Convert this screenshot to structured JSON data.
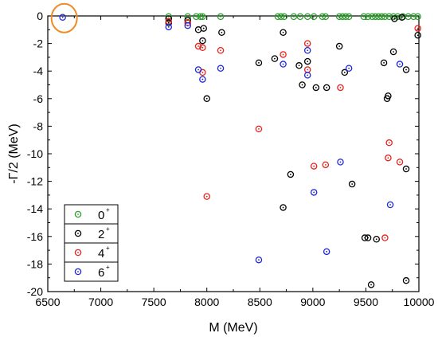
{
  "chart_data": {
    "type": "scatter",
    "xlabel": "M (MeV)",
    "ylabel": "-Γ/2 (MeV)",
    "xlim": [
      6500,
      10000
    ],
    "ylim": [
      -20,
      0
    ],
    "x_ticks": [
      "6500",
      "7000",
      "7500",
      "8000",
      "8500",
      "9000",
      "9500",
      "10000"
    ],
    "y_ticks": [
      "0",
      "-2",
      "-4",
      "-6",
      "-8",
      "-10",
      "-12",
      "-14",
      "-16",
      "-18",
      "-20"
    ],
    "grid": false,
    "legend_position": "bottom-left",
    "highlight": {
      "x": 6640,
      "y": -0.1,
      "color": "#f08a24"
    },
    "series": [
      {
        "name": "0",
        "name_sup": "+",
        "color": "#2ca02c",
        "points": [
          [
            7640,
            -0.05
          ],
          [
            7820,
            -0.05
          ],
          [
            7900,
            -0.05
          ],
          [
            7940,
            -0.05
          ],
          [
            7960,
            -0.05
          ],
          [
            8130,
            -0.05
          ],
          [
            8670,
            -0.05
          ],
          [
            8700,
            -0.05
          ],
          [
            8730,
            -0.05
          ],
          [
            8820,
            -0.05
          ],
          [
            8880,
            -0.05
          ],
          [
            8950,
            -0.05
          ],
          [
            9010,
            -0.05
          ],
          [
            9090,
            -0.05
          ],
          [
            9120,
            -0.05
          ],
          [
            9250,
            -0.05
          ],
          [
            9280,
            -0.05
          ],
          [
            9310,
            -0.05
          ],
          [
            9340,
            -0.05
          ],
          [
            9480,
            -0.05
          ],
          [
            9520,
            -0.05
          ],
          [
            9560,
            -0.05
          ],
          [
            9590,
            -0.05
          ],
          [
            9620,
            -0.05
          ],
          [
            9650,
            -0.05
          ],
          [
            9680,
            -0.05
          ],
          [
            9720,
            -0.05
          ],
          [
            9760,
            -0.05
          ],
          [
            9800,
            -0.05
          ],
          [
            9850,
            -0.05
          ],
          [
            9900,
            -0.05
          ],
          [
            9950,
            -0.05
          ],
          [
            9990,
            -0.05
          ]
        ]
      },
      {
        "name": "2",
        "name_sup": "+",
        "color": "#000000",
        "points": [
          [
            7640,
            -0.2
          ],
          [
            7640,
            -0.5
          ],
          [
            7820,
            -0.3
          ],
          [
            7920,
            -1.0
          ],
          [
            7970,
            -0.9
          ],
          [
            7960,
            -1.8
          ],
          [
            8000,
            -6.0
          ],
          [
            8140,
            -1.2
          ],
          [
            8490,
            -3.4
          ],
          [
            8640,
            -3.1
          ],
          [
            8720,
            -1.2
          ],
          [
            8720,
            -13.9
          ],
          [
            8790,
            -11.5
          ],
          [
            8870,
            -3.6
          ],
          [
            8900,
            -5.0
          ],
          [
            8950,
            -3.3
          ],
          [
            9030,
            -5.2
          ],
          [
            9130,
            -5.2
          ],
          [
            9250,
            -2.2
          ],
          [
            9300,
            -4.1
          ],
          [
            9370,
            -12.2
          ],
          [
            9490,
            -16.1
          ],
          [
            9520,
            -16.1
          ],
          [
            9550,
            -19.5
          ],
          [
            9600,
            -16.2
          ],
          [
            9670,
            -3.4
          ],
          [
            9700,
            -6.0
          ],
          [
            9710,
            -5.8
          ],
          [
            9760,
            -2.6
          ],
          [
            9770,
            -0.2
          ],
          [
            9840,
            -0.1
          ],
          [
            9880,
            -3.9
          ],
          [
            9880,
            -11.1
          ],
          [
            9880,
            -19.2
          ],
          [
            9990,
            -1.4
          ]
        ]
      },
      {
        "name": "4",
        "name_sup": "+",
        "color": "#e8221c",
        "points": [
          [
            7640,
            -0.4
          ],
          [
            7820,
            -0.5
          ],
          [
            7920,
            -2.2
          ],
          [
            7960,
            -2.3
          ],
          [
            7960,
            -4.1
          ],
          [
            8000,
            -13.1
          ],
          [
            8130,
            -2.5
          ],
          [
            8490,
            -8.2
          ],
          [
            8720,
            -2.8
          ],
          [
            8950,
            -2.0
          ],
          [
            8950,
            -3.9
          ],
          [
            9010,
            -10.9
          ],
          [
            9120,
            -10.8
          ],
          [
            9260,
            -5.2
          ],
          [
            9680,
            -16.1
          ],
          [
            9710,
            -10.3
          ],
          [
            9720,
            -9.2
          ],
          [
            9820,
            -10.6
          ],
          [
            9990,
            -0.9
          ]
        ]
      },
      {
        "name": "6",
        "name_sup": "+",
        "color": "#1f28d8",
        "points": [
          [
            6640,
            -0.1
          ],
          [
            7640,
            -0.8
          ],
          [
            7820,
            -0.7
          ],
          [
            7920,
            -3.9
          ],
          [
            7960,
            -4.6
          ],
          [
            8130,
            -3.8
          ],
          [
            8490,
            -17.7
          ],
          [
            8720,
            -3.5
          ],
          [
            8950,
            -2.5
          ],
          [
            8950,
            -4.3
          ],
          [
            9010,
            -12.8
          ],
          [
            9130,
            -17.1
          ],
          [
            9260,
            -10.6
          ],
          [
            9340,
            -3.8
          ],
          [
            9730,
            -13.7
          ],
          [
            9820,
            -3.5
          ]
        ]
      }
    ]
  }
}
